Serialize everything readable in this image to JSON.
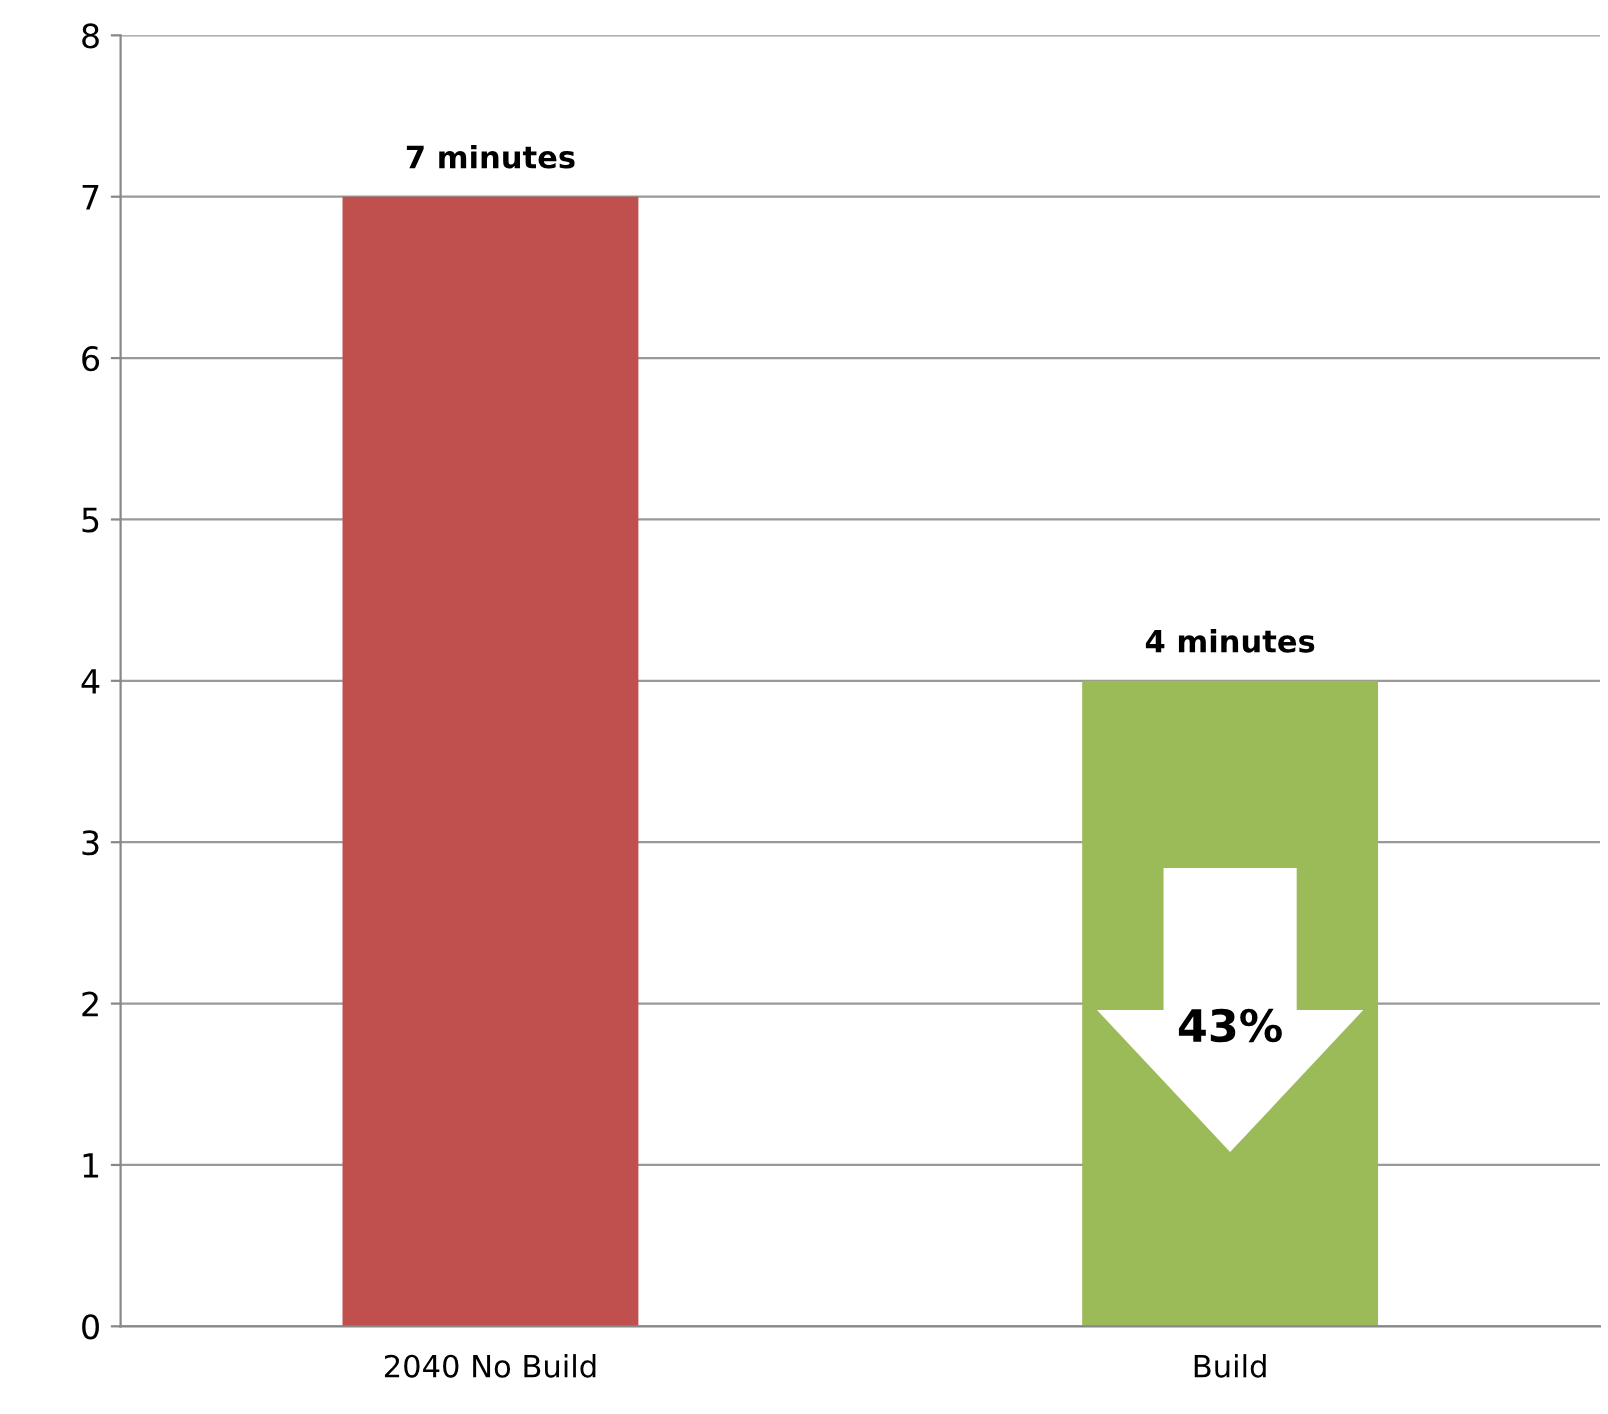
{
  "chart_data": {
    "type": "bar",
    "categories": [
      "2040 No Build",
      "Build"
    ],
    "values": [
      7,
      4
    ],
    "colors": [
      "#c0504d",
      "#9bbb59"
    ],
    "value_labels": [
      "7 minutes",
      "4 minutes"
    ],
    "annotations": [
      "43%"
    ],
    "ylim": [
      0,
      8
    ],
    "yticks": [
      0,
      1,
      2,
      3,
      4,
      5,
      6,
      7,
      8
    ],
    "grid": "y",
    "legend": false
  }
}
